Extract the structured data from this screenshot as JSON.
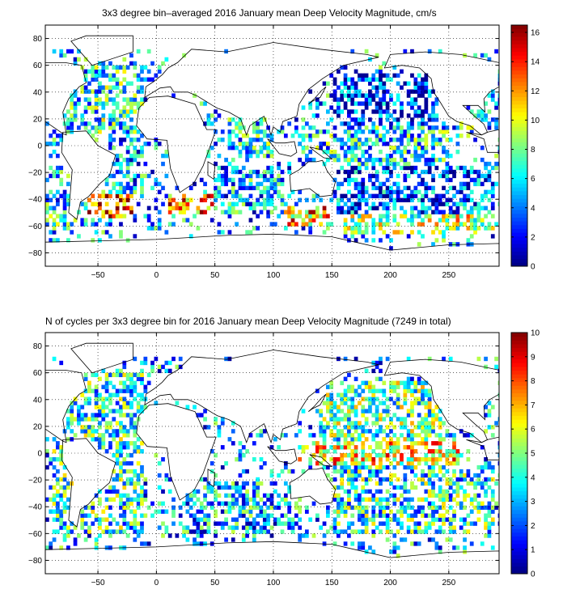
{
  "chart_data": [
    {
      "type": "heatmap",
      "title": "3x3 degree bin–averaged 2016 January mean Deep Velocity Magnitude, cm/s",
      "xlabel": "",
      "ylabel": "",
      "xlim": [
        -95,
        293
      ],
      "ylim": [
        -90,
        90
      ],
      "x_ticks": [
        -50,
        0,
        50,
        100,
        150,
        200,
        250
      ],
      "y_ticks": [
        -80,
        -60,
        -40,
        -20,
        0,
        20,
        40,
        60,
        80
      ],
      "x_tick_labels": [
        "−50",
        "0",
        "50",
        "100",
        "150",
        "200",
        "250"
      ],
      "y_tick_labels": [
        "−80",
        "−60",
        "−40",
        "−20",
        "0",
        "20",
        "40",
        "60",
        "80"
      ],
      "grid": true,
      "bin_size_degrees": 3,
      "colorbar": {
        "min": 0,
        "max": 16.5,
        "ticks": [
          0,
          2,
          4,
          6,
          8,
          10,
          12,
          14,
          16
        ],
        "tick_labels": [
          "0",
          "2",
          "4",
          "6",
          "8",
          "10",
          "12",
          "14",
          "16"
        ],
        "colormap": "jet"
      },
      "regions": [
        {
          "lon": [
            -90,
            -55
          ],
          "lat": [
            0,
            55
          ],
          "level": 0.35
        },
        {
          "lon": [
            -55,
            -10
          ],
          "lat": [
            10,
            60
          ],
          "level": 0.4
        },
        {
          "lon": [
            -40,
            -10
          ],
          "lat": [
            -35,
            5
          ],
          "level": 0.3
        },
        {
          "lon": [
            -60,
            -20
          ],
          "lat": [
            -55,
            -35
          ],
          "level": 0.85
        },
        {
          "lon": [
            -95,
            -60
          ],
          "lat": [
            -60,
            -20
          ],
          "level": 0.35
        },
        {
          "lon": [
            10,
            50
          ],
          "lat": [
            -50,
            -35
          ],
          "level": 0.75
        },
        {
          "lon": [
            50,
            110
          ],
          "lat": [
            -50,
            -15
          ],
          "level": 0.3
        },
        {
          "lon": [
            60,
            100
          ],
          "lat": [
            -10,
            20
          ],
          "level": 0.35
        },
        {
          "lon": [
            110,
            150
          ],
          "lat": [
            -60,
            -45
          ],
          "level": 0.7
        },
        {
          "lon": [
            120,
            250
          ],
          "lat": [
            -15,
            15
          ],
          "level": 0.35
        },
        {
          "lon": [
            150,
            240
          ],
          "lat": [
            15,
            55
          ],
          "level": 0.15
        },
        {
          "lon": [
            150,
            290
          ],
          "lat": [
            -50,
            -15
          ],
          "level": 0.2
        },
        {
          "lon": [
            160,
            290
          ],
          "lat": [
            -65,
            -50
          ],
          "level": 0.55
        },
        {
          "lon": [
            255,
            293
          ],
          "lat": [
            5,
            45
          ],
          "level": 0.35
        }
      ]
    },
    {
      "type": "heatmap",
      "title": "N of cycles per 3x3 degree bin for 2016 January mean Deep Velocity Magnitude (7249 in total)",
      "xlabel": "",
      "ylabel": "",
      "xlim": [
        -95,
        293
      ],
      "ylim": [
        -90,
        90
      ],
      "x_ticks": [
        -50,
        0,
        50,
        100,
        150,
        200,
        250
      ],
      "y_ticks": [
        -80,
        -60,
        -40,
        -20,
        0,
        20,
        40,
        60,
        80
      ],
      "x_tick_labels": [
        "−50",
        "0",
        "50",
        "100",
        "150",
        "200",
        "250"
      ],
      "y_tick_labels": [
        "−80",
        "−60",
        "−40",
        "−20",
        "0",
        "20",
        "40",
        "60",
        "80"
      ],
      "grid": true,
      "bin_size_degrees": 3,
      "total_cycles": 7249,
      "colorbar": {
        "min": 0,
        "max": 10,
        "ticks": [
          0,
          1,
          2,
          3,
          4,
          5,
          6,
          7,
          8,
          9,
          10
        ],
        "tick_labels": [
          "0",
          "1",
          "2",
          "3",
          "4",
          "5",
          "6",
          "7",
          "8",
          "9",
          "10"
        ],
        "colormap": "jet"
      },
      "regions": [
        {
          "lon": [
            -90,
            -10
          ],
          "lat": [
            -60,
            60
          ],
          "level": 0.4
        },
        {
          "lon": [
            20,
            120
          ],
          "lat": [
            -60,
            -20
          ],
          "level": 0.3
        },
        {
          "lon": [
            120,
            260
          ],
          "lat": [
            -10,
            10
          ],
          "level": 0.65
        },
        {
          "lon": [
            140,
            250
          ],
          "lat": [
            10,
            55
          ],
          "level": 0.45
        },
        {
          "lon": [
            150,
            290
          ],
          "lat": [
            -60,
            -10
          ],
          "level": 0.4
        }
      ]
    }
  ]
}
